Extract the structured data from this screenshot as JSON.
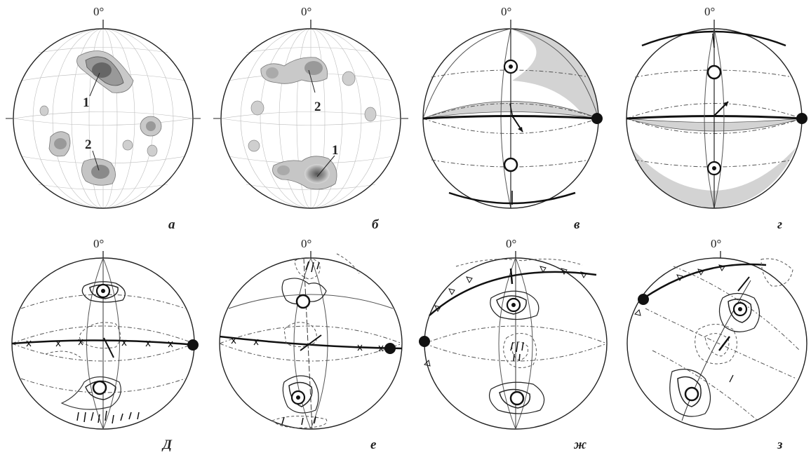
{
  "north_label": "0°",
  "panels_top": [
    {
      "letter": "а",
      "num_1": "1",
      "num_2": "2"
    },
    {
      "letter": "б",
      "num_1": "1",
      "num_2": "2"
    },
    {
      "letter": "в"
    },
    {
      "letter": "г"
    }
  ],
  "panels_bottom": [
    {
      "letter": "Д"
    },
    {
      "letter": "е"
    },
    {
      "letter": "ж"
    },
    {
      "letter": "з"
    }
  ],
  "colors": {
    "line": "#222222",
    "grid": "#b8b8b8",
    "fill": "#d6d6d6",
    "contour_dark": "#6a6a6a"
  }
}
